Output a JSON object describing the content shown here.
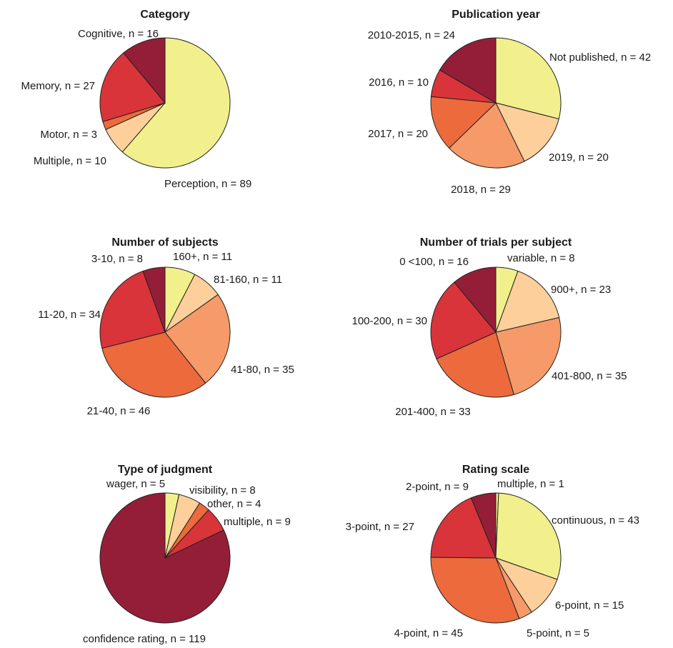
{
  "colors": {
    "palette": [
      "#f2f08c",
      "#fccf9b",
      "#f59a68",
      "#ec6a3c",
      "#d8343a",
      "#941e38"
    ],
    "background": "#ffffff",
    "stroke": "#222222"
  },
  "chart_data": [
    {
      "type": "pie",
      "title": "Category",
      "slices": [
        {
          "name": "Perception",
          "value": 89,
          "label": "Perception, n = 89",
          "color": "#f2f08c"
        },
        {
          "name": "Multiple",
          "value": 10,
          "label": "Multiple, n = 10",
          "color": "#fccf9b"
        },
        {
          "name": "Motor",
          "value": 3,
          "label": "Motor, n = 3",
          "color": "#ec6a3c"
        },
        {
          "name": "Memory",
          "value": 27,
          "label": "Memory, n = 27",
          "color": "#d8343a"
        },
        {
          "name": "Cognitive",
          "value": 16,
          "label": "Cognitive, n = 16",
          "color": "#941e38"
        }
      ]
    },
    {
      "type": "pie",
      "title": "Publication year",
      "slices": [
        {
          "name": "Not published",
          "value": 42,
          "label": "Not published, n = 42",
          "color": "#f2f08c"
        },
        {
          "name": "2019",
          "value": 20,
          "label": "2019, n = 20",
          "color": "#fccf9b"
        },
        {
          "name": "2018",
          "value": 29,
          "label": "2018, n = 29",
          "color": "#f59a68"
        },
        {
          "name": "2017",
          "value": 20,
          "label": "2017, n = 20",
          "color": "#ec6a3c"
        },
        {
          "name": "2016",
          "value": 10,
          "label": "2016, n = 10",
          "color": "#d8343a"
        },
        {
          "name": "2010-2015",
          "value": 24,
          "label": "2010-2015, n = 24",
          "color": "#941e38"
        }
      ]
    },
    {
      "type": "pie",
      "title": "Number of subjects",
      "slices": [
        {
          "name": "160+",
          "value": 11,
          "label": "160+, n = 11",
          "color": "#f2f08c"
        },
        {
          "name": "81-160",
          "value": 11,
          "label": "81-160, n = 11",
          "color": "#fccf9b"
        },
        {
          "name": "41-80",
          "value": 35,
          "label": "41-80, n = 35",
          "color": "#f59a68"
        },
        {
          "name": "21-40",
          "value": 46,
          "label": "21-40, n = 46",
          "color": "#ec6a3c"
        },
        {
          "name": "11-20",
          "value": 34,
          "label": "11-20, n = 34",
          "color": "#d8343a"
        },
        {
          "name": "3-10",
          "value": 8,
          "label": "3-10, n = 8",
          "color": "#941e38"
        }
      ]
    },
    {
      "type": "pie",
      "title": "Number of trials per subject",
      "slices": [
        {
          "name": "variable",
          "value": 8,
          "label": "variable, n = 8",
          "color": "#f2f08c"
        },
        {
          "name": "900+",
          "value": 23,
          "label": "900+, n = 23",
          "color": "#fccf9b"
        },
        {
          "name": "401-800",
          "value": 35,
          "label": "401-800, n = 35",
          "color": "#f59a68"
        },
        {
          "name": "201-400",
          "value": 33,
          "label": "201-400, n = 33",
          "color": "#ec6a3c"
        },
        {
          "name": "100-200",
          "value": 30,
          "label": "100-200, n = 30",
          "color": "#d8343a"
        },
        {
          "name": "0 <100",
          "value": 16,
          "label": "0 <100, n = 16",
          "color": "#941e38"
        }
      ]
    },
    {
      "type": "pie",
      "title": "Type of judgment",
      "slices": [
        {
          "name": "wager",
          "value": 5,
          "label": "wager, n = 5",
          "color": "#f2f08c"
        },
        {
          "name": "visibility",
          "value": 8,
          "label": "visibility, n = 8",
          "color": "#fccf9b"
        },
        {
          "name": "other",
          "value": 4,
          "label": "other, n = 4",
          "color": "#ec6a3c"
        },
        {
          "name": "multiple",
          "value": 9,
          "label": "multiple, n = 9",
          "color": "#d8343a"
        },
        {
          "name": "confidence rating",
          "value": 119,
          "label": "confidence rating, n = 119",
          "color": "#941e38"
        }
      ]
    },
    {
      "type": "pie",
      "title": "Rating scale",
      "slices": [
        {
          "name": "multiple",
          "value": 1,
          "label": "multiple, n = 1",
          "color": "#f2f08c"
        },
        {
          "name": "continuous",
          "value": 43,
          "label": "continuous, n = 43",
          "color": "#f2f08c"
        },
        {
          "name": "6-point",
          "value": 15,
          "label": "6-point, n = 15",
          "color": "#fccf9b"
        },
        {
          "name": "5-point",
          "value": 5,
          "label": "5-point, n = 5",
          "color": "#f59a68"
        },
        {
          "name": "4-point",
          "value": 45,
          "label": "4-point, n = 45",
          "color": "#ec6a3c"
        },
        {
          "name": "3-point",
          "value": 27,
          "label": "3-point, n = 27",
          "color": "#d8343a"
        },
        {
          "name": "2-point",
          "value": 9,
          "label": "2-point, n = 9",
          "color": "#941e38"
        }
      ]
    }
  ]
}
